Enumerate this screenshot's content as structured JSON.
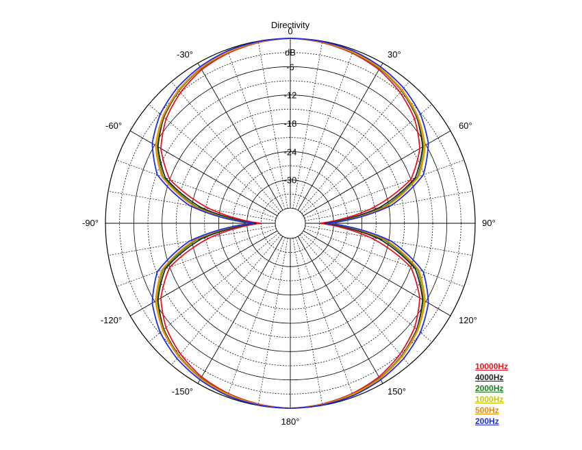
{
  "chart_data": {
    "type": "polar",
    "title": "Directivity",
    "radial_unit": "dB",
    "radial_range": [
      -36,
      0
    ],
    "radial_ticks": [
      "0",
      "-6",
      "-12",
      "-18",
      "-24",
      "-30"
    ],
    "angle_ticks": [
      {
        "deg": 0,
        "label": "0"
      },
      {
        "deg": 30,
        "label": "30°"
      },
      {
        "deg": 60,
        "label": "60°"
      },
      {
        "deg": 90,
        "label": "90°"
      },
      {
        "deg": 120,
        "label": "120°"
      },
      {
        "deg": 150,
        "label": "150°"
      },
      {
        "deg": 180,
        "label": "180°"
      },
      {
        "deg": -150,
        "label": "-150°"
      },
      {
        "deg": -120,
        "label": "-120°"
      },
      {
        "deg": -90,
        "label": "-90°"
      },
      {
        "deg": -60,
        "label": "-60°"
      },
      {
        "deg": -30,
        "label": "-30°"
      }
    ],
    "pattern": "figure-8 (bidirectional)",
    "angles_deg": [
      0,
      10,
      20,
      30,
      40,
      50,
      60,
      70,
      80,
      85,
      90
    ],
    "series": [
      {
        "name": "10000Hz",
        "color": "#e8101e",
        "values_db": [
          0,
          -0.3,
          -0.8,
          -1.6,
          -3.0,
          -4.8,
          -7.5,
          -12.0,
          -22.0,
          -28.0,
          -33.0
        ]
      },
      {
        "name": "4000Hz",
        "color": "#222222",
        "values_db": [
          0,
          -0.2,
          -0.6,
          -1.3,
          -2.5,
          -4.2,
          -6.8,
          -11.0,
          -20.0,
          -26.5,
          -32.0
        ]
      },
      {
        "name": "2000Hz",
        "color": "#1a7f1a",
        "values_db": [
          0,
          -0.2,
          -0.6,
          -1.3,
          -2.4,
          -4.0,
          -6.5,
          -10.5,
          -19.0,
          -25.5,
          -31.5
        ]
      },
      {
        "name": "1000Hz",
        "color": "#c8c800",
        "values_db": [
          0,
          -0.2,
          -0.6,
          -1.2,
          -2.4,
          -4.0,
          -6.4,
          -10.3,
          -18.5,
          -25.0,
          -31.0
        ]
      },
      {
        "name": "500Hz",
        "color": "#ee8800",
        "values_db": [
          0,
          -0.2,
          -0.5,
          -1.2,
          -2.3,
          -3.9,
          -6.2,
          -10.2,
          -18.5,
          -25.0,
          -31.0
        ]
      },
      {
        "name": "200Hz",
        "color": "#1c2ee0",
        "values_db": [
          0,
          -0.1,
          -0.3,
          -0.9,
          -1.8,
          -3.2,
          -5.4,
          -9.2,
          -17.5,
          -24.5,
          -31.5
        ]
      }
    ],
    "legend_position": "bottom-right",
    "grid": true
  }
}
